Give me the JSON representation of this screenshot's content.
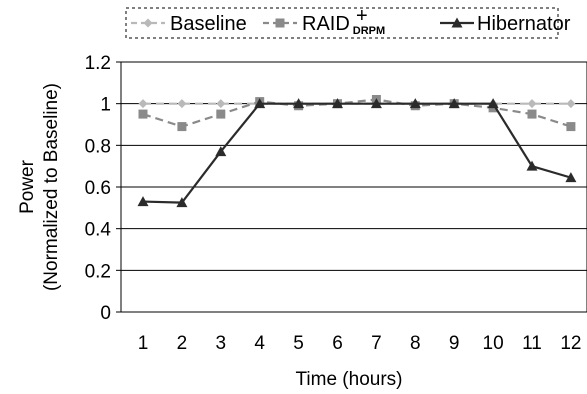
{
  "chart_data": {
    "type": "line",
    "title": "",
    "xlabel": "Time (hours)",
    "ylabel": [
      "Power",
      "(Normalized to Baseline)"
    ],
    "x": [
      1,
      2,
      3,
      4,
      5,
      6,
      7,
      8,
      9,
      10,
      11,
      12
    ],
    "ylim": [
      0,
      1.2
    ],
    "yticks": [
      "0",
      "0.2",
      "0.4",
      "0.6",
      "0.8",
      "1",
      "1.2"
    ],
    "grid": true,
    "legend_position": "top",
    "series": [
      {
        "name": "Baseline",
        "color": "#b9b9b9",
        "marker": "diamond",
        "line": "dashed",
        "values": [
          1,
          1,
          1,
          1,
          1,
          1,
          1,
          1,
          1,
          1,
          1,
          1
        ]
      },
      {
        "name": "RAID",
        "name_superscript": "+",
        "name_subscript": "DRPM",
        "color": "#8a8a8a",
        "marker": "square",
        "line": "dashed",
        "values": [
          0.95,
          0.89,
          0.95,
          1.01,
          0.99,
          1.0,
          1.02,
          0.99,
          1.0,
          0.98,
          0.95,
          0.89
        ]
      },
      {
        "name": "Hibernator",
        "color": "#2b2b2b",
        "marker": "triangle",
        "line": "solid",
        "values": [
          0.53,
          0.525,
          0.77,
          1.0,
          1.0,
          1.0,
          1.0,
          1.0,
          1.0,
          1.0,
          0.7,
          0.645
        ]
      }
    ]
  }
}
